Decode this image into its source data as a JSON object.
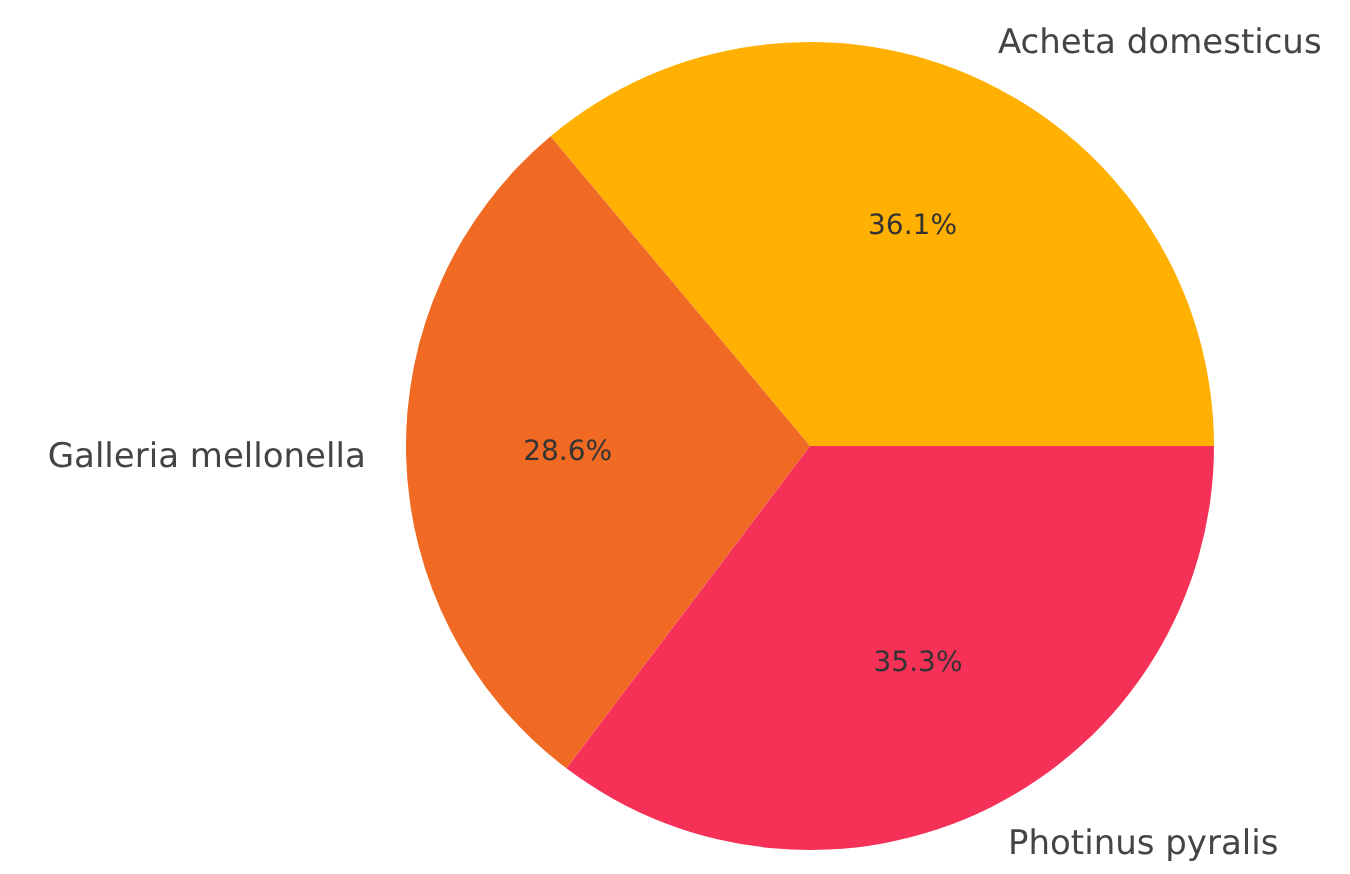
{
  "chart_data": {
    "type": "pie",
    "categories": [
      "Acheta domesticus",
      "Galleria mellonella",
      "Photinus pyralis"
    ],
    "values": [
      36.1,
      28.6,
      35.3
    ],
    "value_labels": [
      "36.1%",
      "28.6%",
      "35.3%"
    ],
    "colors": [
      "#ffb000",
      "#f06a23",
      "#f53157"
    ]
  }
}
